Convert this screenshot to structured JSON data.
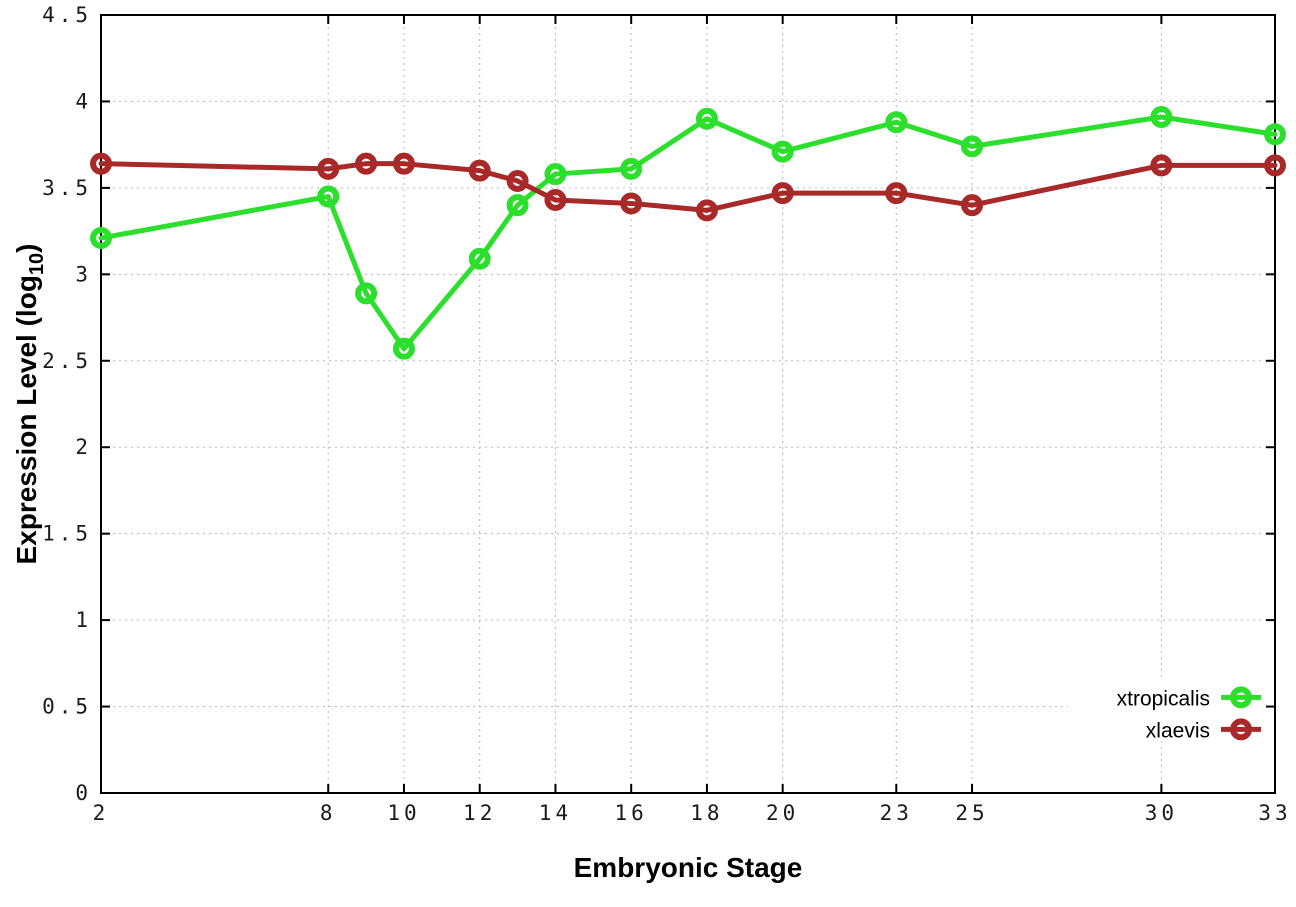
{
  "chart_data": {
    "type": "line",
    "title": "",
    "xlabel": "Embryonic Stage",
    "ylabel": "Expression Level (log10)",
    "ylabel_parts": {
      "main": "Expression Level (log",
      "sub": "10",
      "end": ")"
    },
    "xlim": [
      2,
      33
    ],
    "ylim": [
      0,
      4.5
    ],
    "x_ticks": [
      2,
      8,
      10,
      12,
      14,
      16,
      18,
      20,
      23,
      25,
      30,
      33
    ],
    "x_tick_labels": [
      "2",
      "8",
      "10",
      "12",
      "14",
      "16",
      "18",
      "20",
      "23",
      "25",
      "30",
      "33"
    ],
    "y_ticks": [
      0,
      0.5,
      1,
      1.5,
      2,
      2.5,
      3,
      3.5,
      4,
      4.5
    ],
    "y_tick_labels": [
      "0",
      "0.5",
      "1",
      "1.5",
      "2",
      "2.5",
      "3",
      "3.5",
      "4",
      "4.5"
    ],
    "grid": true,
    "legend_position": "bottom-right",
    "x": [
      2,
      8,
      9,
      10,
      12,
      13,
      14,
      16,
      18,
      20,
      23,
      25,
      30,
      33
    ],
    "series": [
      {
        "name": "xtropicalis",
        "color": "#2cdf2c",
        "marker": "open-circle",
        "values": [
          3.21,
          3.45,
          2.89,
          2.57,
          3.09,
          3.4,
          3.58,
          3.61,
          3.9,
          3.71,
          3.88,
          3.74,
          3.91,
          3.81
        ]
      },
      {
        "name": "xlaevis",
        "color": "#a92828",
        "marker": "open-circle",
        "values": [
          3.64,
          3.61,
          3.64,
          3.64,
          3.6,
          3.54,
          3.43,
          3.41,
          3.37,
          3.47,
          3.47,
          3.4,
          3.63,
          3.63
        ]
      }
    ],
    "colors": {
      "background": "#ffffff",
      "axis": "#000000",
      "grid": "#b8b8b8",
      "text": "#1a1a1a"
    }
  }
}
